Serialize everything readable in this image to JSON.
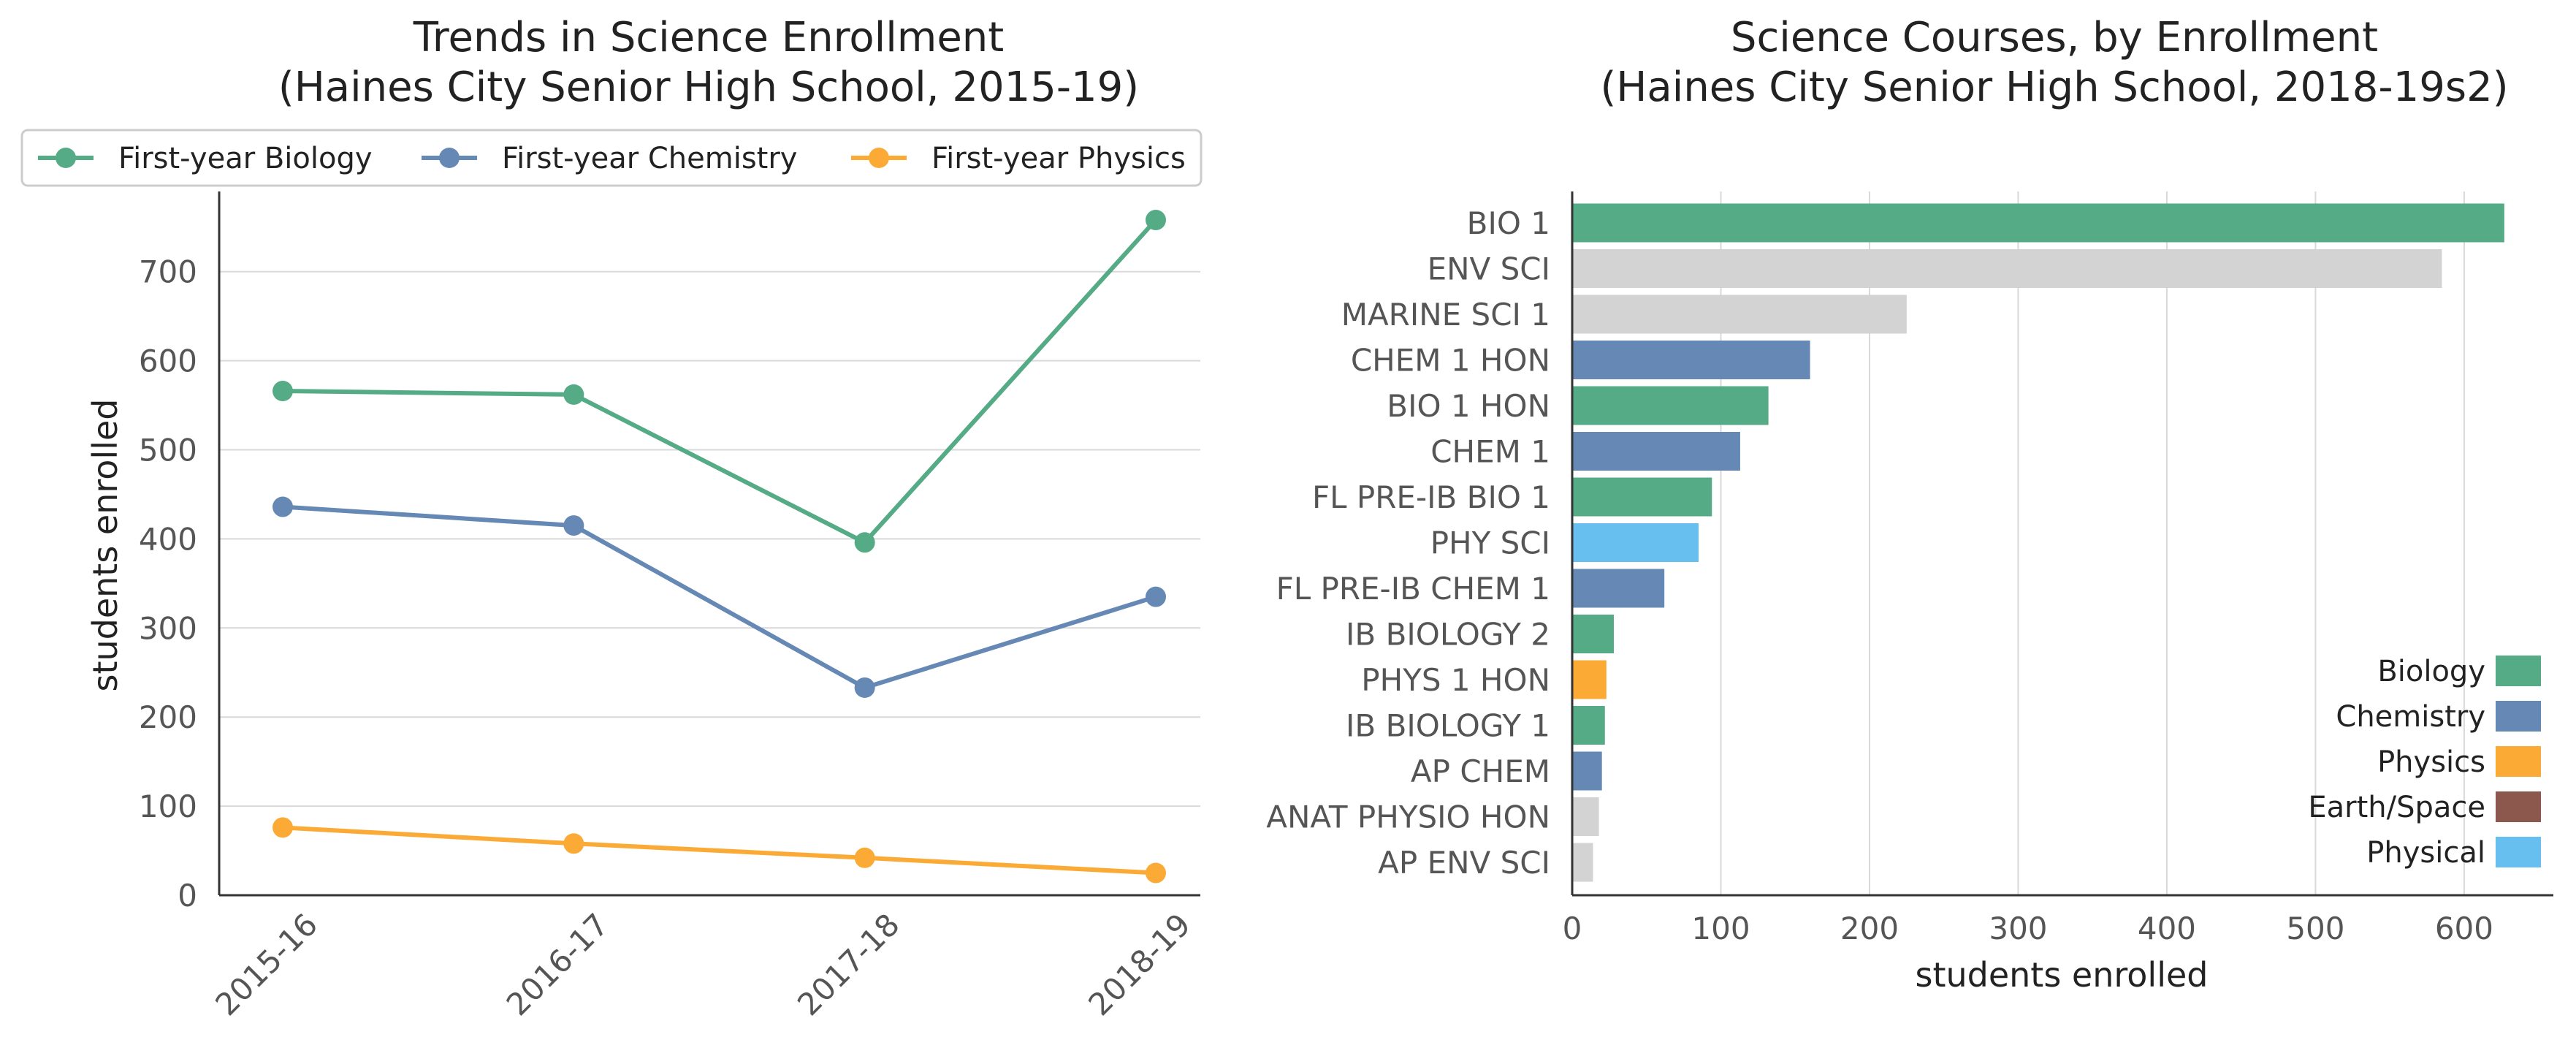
{
  "chart_data": [
    {
      "type": "line",
      "title": "Trends in Science Enrollment",
      "subtitle": "(Haines City Senior High School, 2015-19)",
      "xlabel": "",
      "ylabel": "students enrolled",
      "categories": [
        "2015-16",
        "2016-17",
        "2017-18",
        "2018-19"
      ],
      "ylim": [
        0,
        790
      ],
      "yticks": [
        0,
        100,
        200,
        300,
        400,
        500,
        600,
        700
      ],
      "grid": "horizontal",
      "legend_position": "top",
      "series": [
        {
          "name": "First-year Biology",
          "color": "#55ab85",
          "values": [
            566,
            562,
            396,
            758
          ]
        },
        {
          "name": "First-year Chemistry",
          "color": "#6588b4",
          "values": [
            436,
            415,
            233,
            335
          ]
        },
        {
          "name": "First-year Physics",
          "color": "#fbaa35",
          "values": [
            76,
            58,
            42,
            25
          ]
        }
      ]
    },
    {
      "type": "bar",
      "orientation": "horizontal",
      "title": "Science Courses, by Enrollment",
      "subtitle": "(Haines City Senior High School, 2018-19s2)",
      "xlabel": "students enrolled",
      "ylabel": "",
      "xlim": [
        0,
        660
      ],
      "xticks": [
        0,
        100,
        200,
        300,
        400,
        500,
        600
      ],
      "grid": "vertical",
      "legend_position": "bottom-right",
      "categories": [
        "BIO 1",
        "ENV SCI",
        "MARINE SCI 1",
        "CHEM 1 HON",
        "BIO 1 HON",
        "CHEM 1",
        "FL PRE-IB BIO 1",
        "PHY SCI",
        "FL PRE-IB CHEM 1",
        "IB BIOLOGY 2",
        "PHYS 1 HON",
        "IB BIOLOGY 1",
        "AP CHEM",
        "ANAT PHYSIO HON",
        "AP ENV SCI"
      ],
      "values": [
        627,
        585,
        225,
        160,
        132,
        113,
        94,
        85,
        62,
        28,
        23,
        22,
        20,
        18,
        14
      ],
      "subjects": [
        "Biology",
        "Other",
        "Other",
        "Chemistry",
        "Biology",
        "Chemistry",
        "Biology",
        "Physical",
        "Chemistry",
        "Biology",
        "Physics",
        "Biology",
        "Chemistry",
        "Other",
        "Other"
      ],
      "subject_colors": {
        "Biology": "#55ab85",
        "Chemistry": "#6588b4",
        "Physics": "#fbaa35",
        "Earth/Space": "#8c574c",
        "Physical": "#66bfee",
        "Other": "#d3d3d3"
      },
      "legend": [
        "Biology",
        "Chemistry",
        "Physics",
        "Earth/Space",
        "Physical"
      ]
    }
  ]
}
